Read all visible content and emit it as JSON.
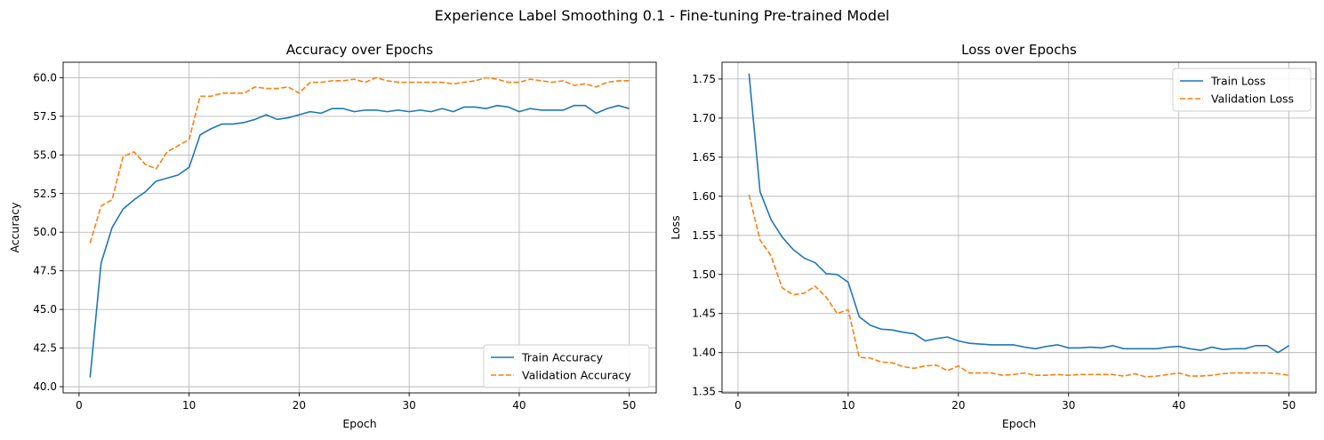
{
  "figure": {
    "suptitle": "Experience Label Smoothing 0.1 - Fine-tuning Pre-trained Model"
  },
  "colors": {
    "train": "#1f77b4",
    "validation": "#ff7f0e",
    "grid": "#b0b0b0"
  },
  "chart_data": [
    {
      "type": "line",
      "title": "Accuracy over Epochs",
      "xlabel": "Epoch",
      "ylabel": "Accuracy",
      "xlim": [
        -1.45,
        52.45
      ],
      "ylim": [
        39.6,
        61.0
      ],
      "xticks": [
        0,
        10,
        20,
        30,
        40,
        50
      ],
      "yticks": [
        40.0,
        42.5,
        45.0,
        47.5,
        50.0,
        52.5,
        55.0,
        57.5,
        60.0
      ],
      "ytick_labels": [
        "40.0",
        "42.5",
        "45.0",
        "47.5",
        "50.0",
        "52.5",
        "55.0",
        "57.5",
        "60.0"
      ],
      "grid": true,
      "legend_position": "lower-right",
      "x": [
        1,
        2,
        3,
        4,
        5,
        6,
        7,
        8,
        9,
        10,
        11,
        12,
        13,
        14,
        15,
        16,
        17,
        18,
        19,
        20,
        21,
        22,
        23,
        24,
        25,
        26,
        27,
        28,
        29,
        30,
        31,
        32,
        33,
        34,
        35,
        36,
        37,
        38,
        39,
        40,
        41,
        42,
        43,
        44,
        45,
        46,
        47,
        48,
        49,
        50
      ],
      "series": [
        {
          "name": "Train Accuracy",
          "style": "solid",
          "values": [
            40.6,
            48.0,
            50.3,
            51.5,
            52.1,
            52.6,
            53.3,
            53.5,
            53.7,
            54.2,
            56.3,
            56.7,
            57.0,
            57.0,
            57.1,
            57.3,
            57.6,
            57.3,
            57.4,
            57.6,
            57.8,
            57.7,
            58.0,
            58.0,
            57.8,
            57.9,
            57.9,
            57.8,
            57.9,
            57.8,
            57.9,
            57.8,
            58.0,
            57.8,
            58.1,
            58.1,
            58.0,
            58.2,
            58.1,
            57.8,
            58.0,
            57.9,
            57.9,
            57.9,
            58.2,
            58.2,
            57.7,
            58.0,
            58.2,
            58.0
          ]
        },
        {
          "name": "Validation Accuracy",
          "style": "dashed",
          "values": [
            49.3,
            51.7,
            52.1,
            54.9,
            55.2,
            54.4,
            54.1,
            55.2,
            55.6,
            56.0,
            58.8,
            58.8,
            59.0,
            59.0,
            59.0,
            59.4,
            59.3,
            59.3,
            59.4,
            59.0,
            59.7,
            59.7,
            59.8,
            59.8,
            59.9,
            59.7,
            60.0,
            59.8,
            59.7,
            59.7,
            59.7,
            59.7,
            59.7,
            59.6,
            59.7,
            59.8,
            60.0,
            59.9,
            59.7,
            59.7,
            59.9,
            59.8,
            59.7,
            59.8,
            59.5,
            59.6,
            59.4,
            59.7,
            59.8,
            59.8
          ]
        }
      ]
    },
    {
      "type": "line",
      "title": "Loss over Epochs",
      "xlabel": "Epoch",
      "ylabel": "Loss",
      "xlim": [
        -1.45,
        52.45
      ],
      "ylim": [
        1.3485,
        1.7715
      ],
      "xticks": [
        0,
        10,
        20,
        30,
        40,
        50
      ],
      "yticks": [
        1.35,
        1.4,
        1.45,
        1.5,
        1.55,
        1.6,
        1.65,
        1.7,
        1.75
      ],
      "ytick_labels": [
        "1.35",
        "1.40",
        "1.45",
        "1.50",
        "1.55",
        "1.60",
        "1.65",
        "1.70",
        "1.75"
      ],
      "grid": true,
      "legend_position": "upper-right",
      "x": [
        1,
        2,
        3,
        4,
        5,
        6,
        7,
        8,
        9,
        10,
        11,
        12,
        13,
        14,
        15,
        16,
        17,
        18,
        19,
        20,
        21,
        22,
        23,
        24,
        25,
        26,
        27,
        28,
        29,
        30,
        31,
        32,
        33,
        34,
        35,
        36,
        37,
        38,
        39,
        40,
        41,
        42,
        43,
        44,
        45,
        46,
        47,
        48,
        49,
        50
      ],
      "series": [
        {
          "name": "Train Loss",
          "style": "solid",
          "values": [
            1.757,
            1.606,
            1.57,
            1.548,
            1.532,
            1.521,
            1.515,
            1.501,
            1.5,
            1.49,
            1.446,
            1.435,
            1.43,
            1.429,
            1.426,
            1.424,
            1.415,
            1.418,
            1.42,
            1.415,
            1.412,
            1.411,
            1.41,
            1.41,
            1.41,
            1.407,
            1.405,
            1.408,
            1.41,
            1.406,
            1.406,
            1.407,
            1.406,
            1.409,
            1.405,
            1.405,
            1.405,
            1.405,
            1.407,
            1.408,
            1.405,
            1.403,
            1.407,
            1.404,
            1.405,
            1.405,
            1.409,
            1.409,
            1.4,
            1.409
          ]
        },
        {
          "name": "Validation Loss",
          "style": "dashed",
          "values": [
            1.602,
            1.544,
            1.524,
            1.483,
            1.474,
            1.476,
            1.485,
            1.471,
            1.45,
            1.455,
            1.394,
            1.393,
            1.388,
            1.387,
            1.382,
            1.38,
            1.383,
            1.384,
            1.377,
            1.383,
            1.374,
            1.374,
            1.374,
            1.371,
            1.372,
            1.374,
            1.371,
            1.371,
            1.372,
            1.371,
            1.372,
            1.372,
            1.372,
            1.372,
            1.37,
            1.373,
            1.369,
            1.37,
            1.372,
            1.374,
            1.37,
            1.37,
            1.371,
            1.373,
            1.374,
            1.374,
            1.374,
            1.374,
            1.373,
            1.371
          ]
        }
      ]
    }
  ]
}
